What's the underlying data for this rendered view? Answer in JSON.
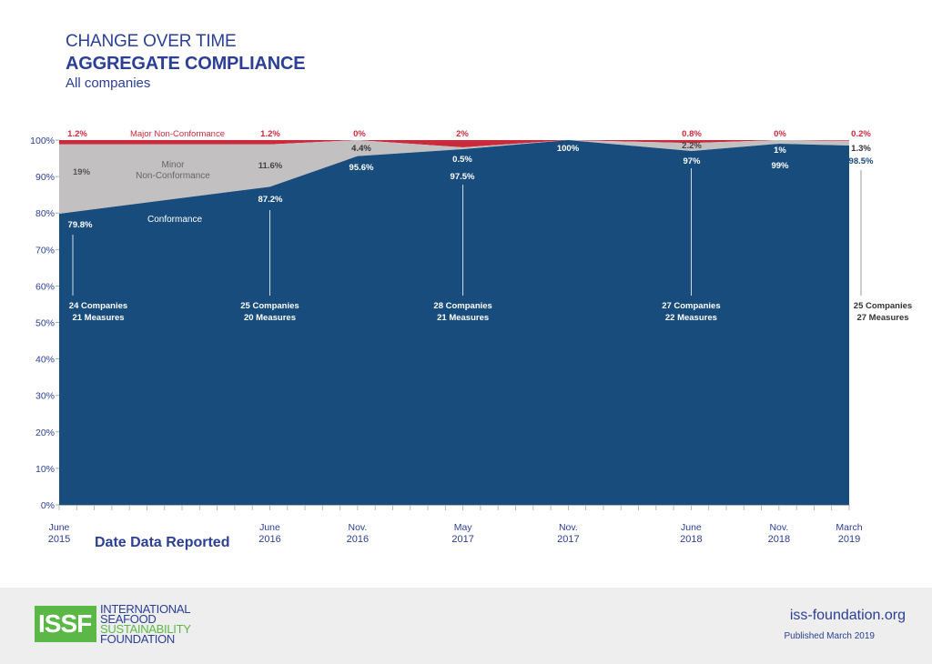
{
  "header": {
    "line1": "CHANGE OVER TIME",
    "line2": "AGGREGATE COMPLIANCE",
    "line3": "All companies"
  },
  "colors": {
    "conformance": "#174c7c",
    "minor": "#c2c0c0",
    "major": "#c92a3c",
    "brand_blue": "#2b3f95",
    "brand_green": "#5bb847"
  },
  "chart_data": {
    "type": "area",
    "stacked": true,
    "xlabel": "Date Data Reported",
    "ylabel": "",
    "ylim": [
      0,
      100
    ],
    "yticks": [
      "0%",
      "10%",
      "20%",
      "30%",
      "40%",
      "50%",
      "60%",
      "70%",
      "80%",
      "90%",
      "100%"
    ],
    "x": [
      "2015-06",
      "2016-06",
      "2016-11",
      "2017-05",
      "2017-11",
      "2018-06",
      "2018-11",
      "2019-03"
    ],
    "x_labels": [
      [
        "June",
        "2015"
      ],
      [
        "June",
        "2016"
      ],
      [
        "Nov.",
        "2016"
      ],
      [
        "May",
        "2017"
      ],
      [
        "Nov.",
        "2017"
      ],
      [
        "June",
        "2018"
      ],
      [
        "Nov.",
        "2018"
      ],
      [
        "March",
        "2019"
      ]
    ],
    "series": [
      {
        "name": "Conformance",
        "values": [
          79.8,
          87.2,
          95.6,
          97.5,
          100,
          97,
          99,
          98.5
        ],
        "labels": [
          "79.8%",
          "87.2%",
          "95.6%",
          "97.5%",
          "100%",
          "97%",
          "99%",
          "98.5%"
        ]
      },
      {
        "name": "Minor Non-Conformance",
        "values": [
          19,
          11.6,
          4.4,
          0.5,
          0,
          2.2,
          1,
          1.3
        ],
        "labels": [
          "19%",
          "11.6%",
          "4.4%",
          "0.5%",
          "",
          "2.2%",
          "1%",
          "1.3%"
        ]
      },
      {
        "name": "Major Non-Conformance",
        "values": [
          1.2,
          1.2,
          0,
          2,
          0,
          0.8,
          0,
          0.2
        ],
        "labels": [
          "1.2%",
          "1.2%",
          "0%",
          "2%",
          "",
          "0.8%",
          "0%",
          "0.2%"
        ]
      }
    ],
    "series_label_lines": {
      "conformance": "Conformance",
      "minor_1": "Minor",
      "minor_2": "Non-Conformance",
      "major": "Major Non-Conformance"
    },
    "annotations": [
      {
        "x": "2015-06",
        "companies": "24 Companies",
        "measures": "21 Measures"
      },
      {
        "x": "2016-06",
        "companies": "25 Companies",
        "measures": "20 Measures"
      },
      {
        "x": "2017-05",
        "companies": "28 Companies",
        "measures": "21 Measures"
      },
      {
        "x": "2018-06",
        "companies": "27 Companies",
        "measures": "22 Measures"
      },
      {
        "x": "2019-03",
        "companies": "25 Companies",
        "measures": "27 Measures"
      }
    ]
  },
  "footer": {
    "logo_mark": "ISSF",
    "logo_lines": [
      "INTERNATIONAL",
      "SEAFOOD",
      "SUSTAINABILITY",
      "FOUNDATION"
    ],
    "website": "iss-foundation.org",
    "published": "Published March 2019"
  }
}
